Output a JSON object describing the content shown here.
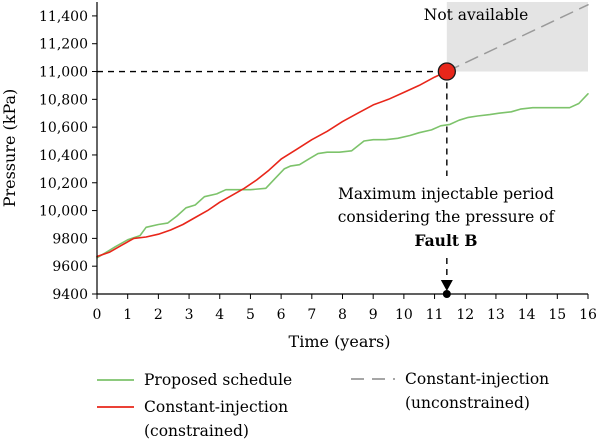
{
  "chart_data": {
    "type": "line",
    "xlabel": "Time (years)",
    "ylabel": "Pressure (kPa)",
    "xlim": [
      0,
      16
    ],
    "ylim": [
      9400,
      11500
    ],
    "x_ticks": [
      0,
      1,
      2,
      3,
      4,
      5,
      6,
      7,
      8,
      9,
      10,
      11,
      12,
      13,
      14,
      15,
      16
    ],
    "x_tick_labels": [
      "0",
      "1",
      "2",
      "3",
      "4",
      "5",
      "6",
      "7",
      "8",
      "9",
      "10",
      "11",
      "12",
      "13",
      "14",
      "15",
      "16"
    ],
    "y_ticks": [
      9400,
      9600,
      9800,
      10000,
      10200,
      10400,
      10600,
      10800,
      11000,
      11200,
      11400
    ],
    "y_tick_labels": [
      "9400",
      "9600",
      "9800",
      "10,000",
      "10,200",
      "10,400",
      "10,600",
      "10,800",
      "11,000",
      "11,200",
      "11,400"
    ],
    "grid": false,
    "legend_position": "bottom",
    "series": [
      {
        "name": "Proposed schedule",
        "color": "#7dc36b",
        "style": "solid",
        "x": [
          0,
          0.3,
          0.6,
          1.0,
          1.4,
          1.6,
          2.0,
          2.3,
          2.6,
          2.9,
          3.2,
          3.5,
          3.9,
          4.2,
          4.6,
          5.0,
          5.5,
          5.8,
          6.1,
          6.3,
          6.6,
          6.9,
          7.2,
          7.5,
          7.9,
          8.3,
          8.7,
          9.0,
          9.4,
          9.8,
          10.2,
          10.5,
          10.9,
          11.2,
          11.5,
          11.8,
          12.1,
          12.4,
          12.8,
          13.1,
          13.5,
          13.8,
          14.2,
          14.6,
          15.0,
          15.4,
          15.7,
          16.0
        ],
        "y": [
          9660,
          9700,
          9740,
          9790,
          9820,
          9880,
          9900,
          9910,
          9960,
          10020,
          10040,
          10100,
          10120,
          10150,
          10150,
          10150,
          10160,
          10230,
          10300,
          10320,
          10330,
          10370,
          10410,
          10420,
          10420,
          10430,
          10500,
          10510,
          10510,
          10520,
          10540,
          10560,
          10580,
          10610,
          10620,
          10650,
          10670,
          10680,
          10690,
          10700,
          10710,
          10730,
          10740,
          10740,
          10740,
          10740,
          10770,
          10840
        ]
      },
      {
        "name": "Constant-injection (constrained)",
        "color": "#e8261a",
        "style": "solid",
        "x": [
          0,
          0.4,
          0.8,
          1.2,
          1.6,
          2.0,
          2.4,
          2.8,
          3.2,
          3.6,
          4.0,
          4.4,
          4.8,
          5.2,
          5.6,
          6.0,
          6.5,
          7.0,
          7.5,
          8.0,
          8.5,
          9.0,
          9.5,
          10.0,
          10.5,
          11.0,
          11.4
        ],
        "y": [
          9670,
          9700,
          9750,
          9800,
          9810,
          9830,
          9860,
          9900,
          9950,
          10000,
          10060,
          10110,
          10160,
          10220,
          10290,
          10370,
          10440,
          10510,
          10570,
          10640,
          10700,
          10760,
          10800,
          10850,
          10900,
          10960,
          11000
        ]
      },
      {
        "name": "Constant-injection (unconstrained)",
        "color": "#9a9a9a",
        "style": "dashed",
        "x": [
          11.4,
          16.0
        ],
        "y": [
          11000,
          11480
        ]
      }
    ],
    "annotations": {
      "not_available": "Not available",
      "not_available_region": {
        "x_from": 11.4,
        "x_to": 16,
        "y_from": 11000,
        "y_to": 11500
      },
      "marker_point": {
        "x": 11.4,
        "y": 11000
      },
      "arrow_end": {
        "x": 11.4,
        "y": 9400
      },
      "note_line1": "Maximum injectable period",
      "note_line2": "considering the pressure of",
      "note_line3": "Fault B"
    },
    "legend": [
      {
        "label_lines": [
          "Proposed schedule"
        ],
        "color": "#7dc36b",
        "style": "solid"
      },
      {
        "label_lines": [
          "Constant-injection",
          "(constrained)"
        ],
        "color": "#e8261a",
        "style": "solid"
      },
      {
        "label_lines": [
          "Constant-injection",
          "(unconstrained)"
        ],
        "color": "#9a9a9a",
        "style": "dashed"
      }
    ]
  }
}
